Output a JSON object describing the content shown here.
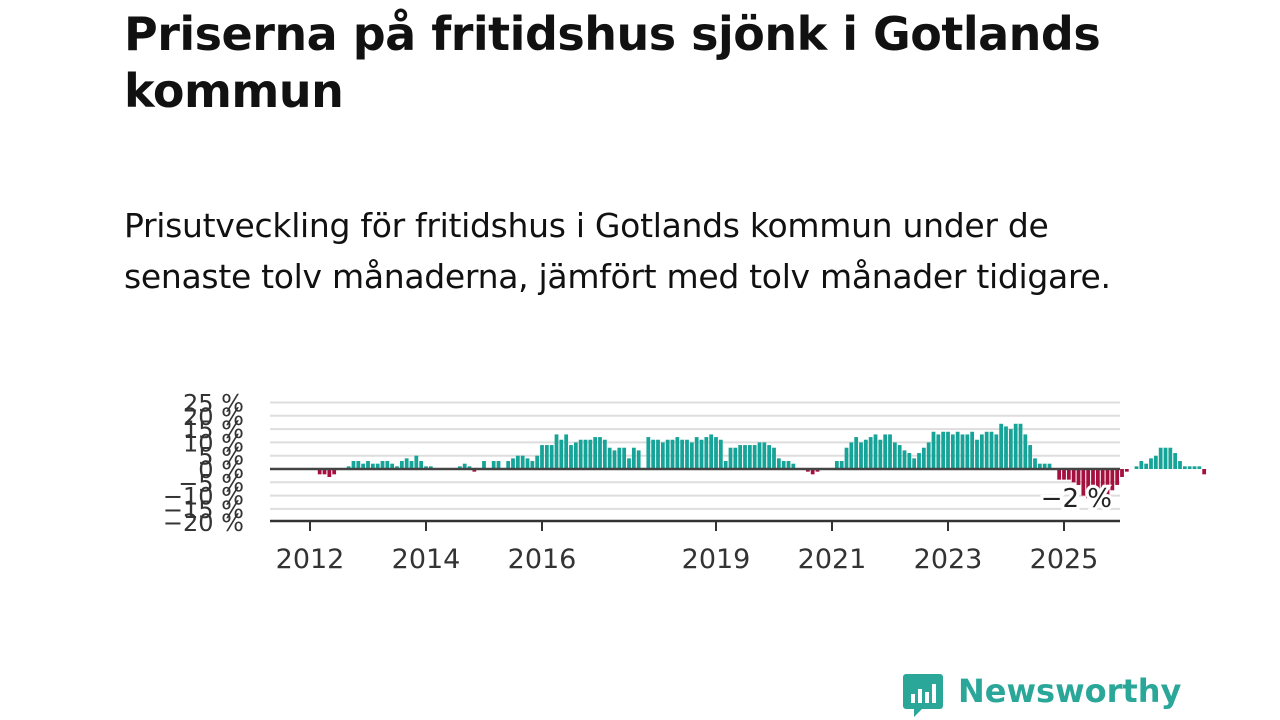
{
  "title": "Priserna på fritidshus sjönk i Gotlands kommun",
  "subtitle": "Prisutveckling för fritidshus i Gotlands kommun under de senaste tolv månaderna, jämfört med tolv månader tidigare.",
  "brand": {
    "name": "Newsworthy",
    "color": "#2ba79a"
  },
  "colors": {
    "positive": "#16a398",
    "negative": "#a5103f",
    "grid": "#dddddd",
    "zero_line": "#444444"
  },
  "chart_data": {
    "type": "bar",
    "title": "",
    "xlabel": "",
    "ylabel": "",
    "ylim": [
      -20,
      25
    ],
    "y_ticks": [
      -20,
      -15,
      -10,
      -5,
      0,
      5,
      10,
      15,
      20,
      25
    ],
    "y_tick_labels": [
      "−20 %",
      "−15 %",
      "−10 %",
      "−5 %",
      "0 %",
      "5 %",
      "10 %",
      "15 %",
      "20 %",
      "25 %"
    ],
    "x_tick_labels": [
      {
        "year": 2012,
        "label": "2012"
      },
      {
        "year": 2014,
        "label": "2014"
      },
      {
        "year": 2016,
        "label": "2016"
      },
      {
        "year": 2019,
        "label": "2019"
      },
      {
        "year": 2021,
        "label": "2021"
      },
      {
        "year": 2023,
        "label": "2023"
      },
      {
        "year": 2025,
        "label": "2025"
      }
    ],
    "start_month": "2012-01",
    "last_value_label": "−2 %",
    "values": [
      0,
      0,
      -2,
      -2,
      -3,
      -2,
      0,
      0,
      1,
      3,
      3,
      2,
      3,
      2,
      2,
      3,
      3,
      2,
      1,
      3,
      4,
      3,
      5,
      3,
      1,
      1,
      0,
      0,
      0,
      0,
      0,
      1,
      2,
      1,
      -1,
      0,
      3,
      0,
      3,
      3,
      0,
      3,
      4,
      5,
      5,
      4,
      3,
      5,
      9,
      9,
      9,
      13,
      11,
      13,
      9,
      10,
      11,
      11,
      11,
      12,
      12,
      11,
      8,
      7,
      8,
      8,
      4,
      8,
      7,
      0,
      12,
      11,
      11,
      10,
      11,
      11,
      12,
      11,
      11,
      10,
      12,
      11,
      12,
      13,
      12,
      11,
      3,
      8,
      8,
      9,
      9,
      9,
      9,
      10,
      10,
      9,
      8,
      4,
      3,
      3,
      2,
      0,
      0,
      -1,
      -2,
      -1,
      0,
      0,
      0,
      3,
      3,
      8,
      10,
      12,
      10,
      11,
      12,
      13,
      11,
      13,
      13,
      10,
      9,
      7,
      6,
      4,
      6,
      8,
      10,
      14,
      13,
      14,
      14,
      13,
      14,
      13,
      13,
      14,
      11,
      13,
      14,
      14,
      13,
      17,
      16,
      15,
      17,
      17,
      13,
      9,
      4,
      2,
      2,
      2,
      0,
      -4,
      -4,
      -4,
      -5,
      -6,
      -10,
      -11,
      -11,
      -13,
      -14,
      -11,
      -8,
      -6,
      -3,
      -1,
      0,
      1,
      3,
      2,
      4,
      5,
      8,
      8,
      8,
      6,
      3,
      1,
      1,
      1,
      1,
      -2
    ]
  }
}
